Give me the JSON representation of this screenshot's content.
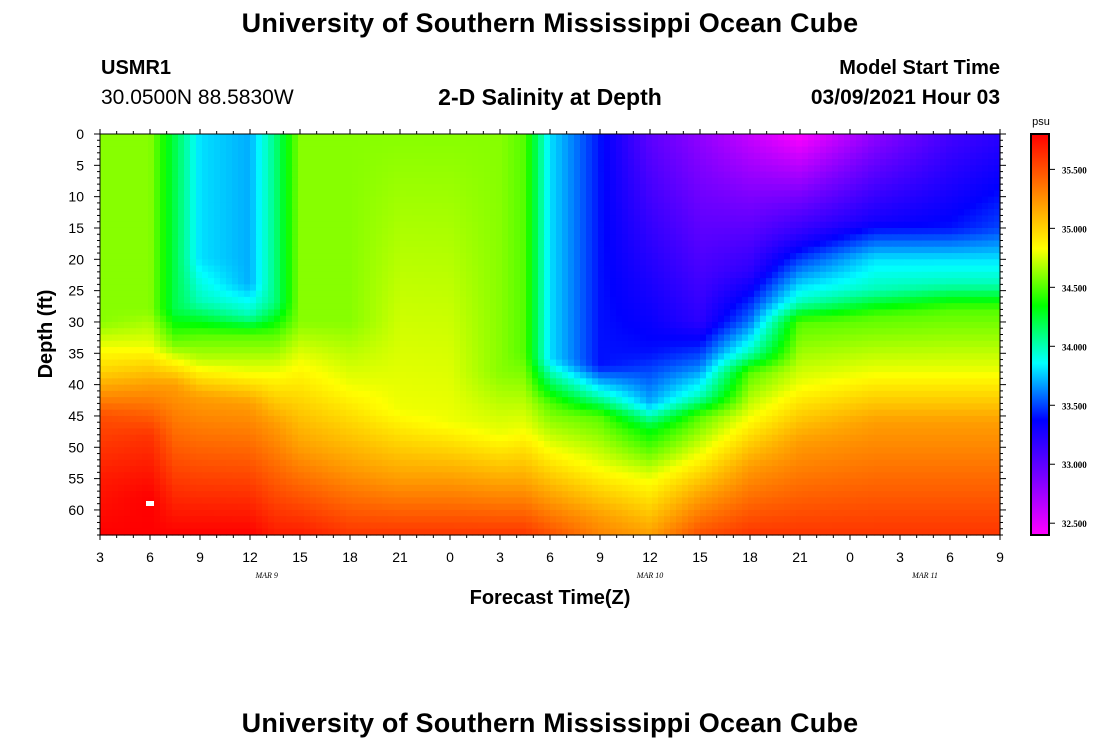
{
  "page": {
    "title_top": "University of Southern Mississippi Ocean Cube",
    "title_bottom": "University of Southern Mississippi Ocean Cube",
    "station_id": "USMR1",
    "station_coords": "30.0500N 88.5830W",
    "subtitle": "2-D Salinity at Depth",
    "model_start_label": "Model Start Time",
    "model_start_value": "03/09/2021 Hour 03"
  },
  "colors": {
    "background": "#ffffff",
    "colormap": [
      "#ff00ff",
      "#7a00ff",
      "#0000ff",
      "#00ffff",
      "#00ff00",
      "#ffff00",
      "#ff8000",
      "#ff0000"
    ]
  },
  "chart_data": {
    "type": "heatmap",
    "variable": "Salinity",
    "units": "psu",
    "xlabel": "Forecast Time(Z)",
    "ylabel": "Depth (ft)",
    "x_hours": [
      0,
      3,
      6,
      9,
      12,
      15,
      18,
      21,
      24,
      27,
      30,
      33,
      36,
      39,
      42,
      45,
      48,
      51,
      54
    ],
    "x_tick_labels": [
      "3",
      "6",
      "9",
      "12",
      "15",
      "18",
      "21",
      "0",
      "3",
      "6",
      "9",
      "12",
      "15",
      "18",
      "21",
      "0",
      "3",
      "6",
      "9"
    ],
    "x_date_labels": [
      {
        "label": "MAR  9",
        "hour": 10
      },
      {
        "label": "MAR  10",
        "hour": 33
      },
      {
        "label": "MAR  11",
        "hour": 49.5
      }
    ],
    "y_ticks": [
      0,
      5,
      10,
      15,
      20,
      25,
      30,
      35,
      40,
      45,
      50,
      55,
      60
    ],
    "ylim": [
      0,
      64
    ],
    "colorbar_ticks": [
      32.5,
      33.0,
      33.5,
      34.0,
      34.5,
      35.0,
      35.5
    ],
    "colorbar_tick_labels": [
      "32.500",
      "33.000",
      "33.500",
      "34.000",
      "34.500",
      "35.000",
      "35.500"
    ],
    "color_range": [
      32.4,
      35.8
    ],
    "grid": false,
    "salinity_profiles": [
      {
        "hour": 0,
        "values": [
          [
            0,
            34.6
          ],
          [
            30,
            34.6
          ],
          [
            38,
            35.0
          ],
          [
            45,
            35.5
          ],
          [
            55,
            35.7
          ],
          [
            64,
            35.8
          ]
        ]
      },
      {
        "hour": 3,
        "values": [
          [
            0,
            34.6
          ],
          [
            28,
            34.6
          ],
          [
            34,
            34.8
          ],
          [
            40,
            35.2
          ],
          [
            48,
            35.6
          ],
          [
            58,
            35.8
          ],
          [
            64,
            35.8
          ]
        ]
      },
      {
        "hour": 4.5,
        "values": [
          [
            0,
            34.2
          ],
          [
            28,
            34.2
          ],
          [
            34,
            34.6
          ],
          [
            40,
            35.2
          ],
          [
            64,
            35.8
          ]
        ]
      },
      {
        "hour": 6,
        "values": [
          [
            0,
            33.8
          ],
          [
            20,
            33.8
          ],
          [
            27,
            34.0
          ],
          [
            32,
            34.5
          ],
          [
            36,
            34.7
          ],
          [
            42,
            35.2
          ],
          [
            64,
            35.8
          ]
        ]
      },
      {
        "hour": 9,
        "values": [
          [
            0,
            33.7
          ],
          [
            24,
            33.7
          ],
          [
            29,
            34.0
          ],
          [
            32,
            34.5
          ],
          [
            38,
            34.8
          ],
          [
            43,
            35.2
          ],
          [
            64,
            35.8
          ]
        ]
      },
      {
        "hour": 10.5,
        "values": [
          [
            0,
            34.1
          ],
          [
            27,
            34.1
          ],
          [
            32,
            34.5
          ],
          [
            38,
            34.8
          ],
          [
            46,
            35.2
          ],
          [
            64,
            35.7
          ]
        ]
      },
      {
        "hour": 12,
        "values": [
          [
            0,
            34.6
          ],
          [
            30,
            34.6
          ],
          [
            36,
            34.8
          ],
          [
            50,
            35.2
          ],
          [
            64,
            35.7
          ]
        ]
      },
      {
        "hour": 15,
        "values": [
          [
            0,
            34.6
          ],
          [
            30,
            34.6
          ],
          [
            40,
            34.8
          ],
          [
            53,
            35.2
          ],
          [
            64,
            35.6
          ]
        ]
      },
      {
        "hour": 18,
        "values": [
          [
            0,
            34.6
          ],
          [
            44,
            34.8
          ],
          [
            55,
            35.2
          ],
          [
            64,
            35.6
          ]
        ]
      },
      {
        "hour": 21,
        "values": [
          [
            0,
            34.6
          ],
          [
            46,
            34.8
          ],
          [
            55,
            35.2
          ],
          [
            64,
            35.6
          ]
        ]
      },
      {
        "hour": 24,
        "values": [
          [
            0,
            34.6
          ],
          [
            38,
            34.6
          ],
          [
            48,
            34.8
          ],
          [
            56,
            35.2
          ],
          [
            64,
            35.6
          ]
        ]
      },
      {
        "hour": 25.5,
        "values": [
          [
            0,
            34.5
          ],
          [
            35,
            34.5
          ],
          [
            47,
            34.8
          ],
          [
            56,
            35.2
          ],
          [
            64,
            35.6
          ]
        ]
      },
      {
        "hour": 27,
        "values": [
          [
            0,
            33.8
          ],
          [
            36,
            33.8
          ],
          [
            40,
            34.2
          ],
          [
            43,
            34.5
          ],
          [
            50,
            34.8
          ],
          [
            58,
            35.2
          ],
          [
            64,
            35.5
          ]
        ]
      },
      {
        "hour": 30,
        "values": [
          [
            0,
            33.4
          ],
          [
            37,
            33.4
          ],
          [
            42,
            34.0
          ],
          [
            45,
            34.5
          ],
          [
            53,
            34.8
          ],
          [
            61,
            35.2
          ],
          [
            64,
            35.3
          ]
        ]
      },
      {
        "hour": 33,
        "values": [
          [
            0,
            33.0
          ],
          [
            35,
            33.4
          ],
          [
            43,
            33.7
          ],
          [
            47,
            34.3
          ],
          [
            55,
            34.8
          ],
          [
            64,
            35.2
          ]
        ]
      },
      {
        "hour": 36,
        "values": [
          [
            0,
            32.8
          ],
          [
            30,
            33.2
          ],
          [
            37,
            33.6
          ],
          [
            42,
            34.0
          ],
          [
            45,
            34.5
          ],
          [
            51,
            34.8
          ],
          [
            58,
            35.2
          ],
          [
            64,
            35.5
          ]
        ]
      },
      {
        "hour": 39,
        "values": [
          [
            0,
            32.6
          ],
          [
            22,
            33.2
          ],
          [
            30,
            33.6
          ],
          [
            35,
            34.0
          ],
          [
            38,
            34.5
          ],
          [
            45,
            34.8
          ],
          [
            53,
            35.2
          ],
          [
            64,
            35.6
          ]
        ]
      },
      {
        "hour": 42,
        "values": [
          [
            0,
            32.4
          ],
          [
            16,
            33.2
          ],
          [
            23,
            33.7
          ],
          [
            27,
            34.0
          ],
          [
            30,
            34.5
          ],
          [
            40,
            34.8
          ],
          [
            49,
            35.2
          ],
          [
            64,
            35.6
          ]
        ]
      },
      {
        "hour": 46.5,
        "values": [
          [
            0,
            32.8
          ],
          [
            14,
            33.3
          ],
          [
            20,
            33.8
          ],
          [
            25,
            34.0
          ],
          [
            29,
            34.5
          ],
          [
            38,
            34.8
          ],
          [
            46,
            35.2
          ],
          [
            64,
            35.6
          ]
        ]
      },
      {
        "hour": 51,
        "values": [
          [
            0,
            33.1
          ],
          [
            15,
            33.4
          ],
          [
            20,
            33.8
          ],
          [
            24,
            34.0
          ],
          [
            28,
            34.5
          ],
          [
            38,
            34.8
          ],
          [
            46,
            35.2
          ],
          [
            64,
            35.6
          ]
        ]
      },
      {
        "hour": 54,
        "values": [
          [
            0,
            33.2
          ],
          [
            15,
            33.5
          ],
          [
            20,
            33.8
          ],
          [
            24,
            34.0
          ],
          [
            28,
            34.5
          ],
          [
            38,
            34.8
          ],
          [
            46,
            35.2
          ],
          [
            64,
            35.6
          ]
        ]
      }
    ]
  }
}
